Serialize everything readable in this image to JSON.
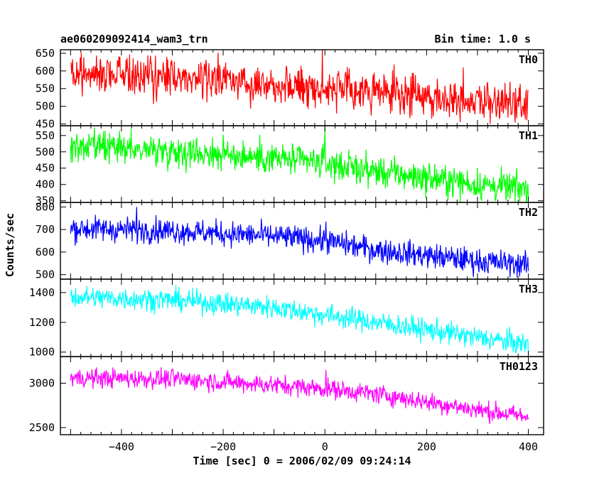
{
  "header": {
    "title": "ae060209092414_wam3_trn",
    "bin_time": "Bin time: 1.0 s"
  },
  "chart_data": {
    "type": "line",
    "title": "ae060209092414_wam3_trn",
    "subtitle": "Bin time: 1.0 s",
    "xlabel": "Time [sec] 0 = 2006/02/09 09:24:14",
    "ylabel": "Counts/sec",
    "xlim": [
      -520,
      430
    ],
    "x_ticks": [
      -400,
      -200,
      0,
      200,
      400
    ],
    "x_tick_labels": [
      "−400",
      "−200",
      "0",
      "200",
      "400"
    ],
    "x_range": [
      -500,
      400
    ],
    "grid": false,
    "panels": [
      {
        "name": "TH0",
        "color": "#ff0000",
        "ylim": [
          445,
          660
        ],
        "y_ticks": [
          450,
          500,
          550,
          600,
          650
        ],
        "trend": {
          "x": [
            -500,
            -300,
            -100,
            0,
            100,
            300,
            400
          ],
          "y": [
            595,
            585,
            565,
            550,
            540,
            515,
            500
          ]
        },
        "noise": 28,
        "spikes": [
          {
            "x": -5,
            "y": 660
          },
          {
            "x": 272,
            "y": 610
          }
        ]
      },
      {
        "name": "TH1",
        "color": "#00ff00",
        "ylim": [
          345,
          580
        ],
        "y_ticks": [
          350,
          400,
          450,
          500,
          550
        ],
        "trend": {
          "x": [
            -500,
            -300,
            -100,
            0,
            100,
            300,
            400
          ],
          "y": [
            515,
            505,
            480,
            465,
            440,
            400,
            385
          ]
        },
        "noise": 24,
        "spikes": [
          {
            "x": 0,
            "y": 578
          }
        ]
      },
      {
        "name": "TH2",
        "color": "#0000ff",
        "ylim": [
          480,
          820
        ],
        "y_ticks": [
          500,
          600,
          700,
          800
        ],
        "trend": {
          "x": [
            -500,
            -300,
            -100,
            0,
            100,
            300,
            400
          ],
          "y": [
            705,
            695,
            670,
            650,
            610,
            560,
            545
          ]
        },
        "noise": 28,
        "spikes": [
          {
            "x": -370,
            "y": 800
          },
          {
            "x": 2,
            "y": 735
          }
        ]
      },
      {
        "name": "TH3",
        "color": "#00ffff",
        "ylim": [
          970,
          1490
        ],
        "y_ticks": [
          1000,
          1200,
          1400
        ],
        "trend": {
          "x": [
            -500,
            -300,
            -100,
            0,
            100,
            300,
            400
          ],
          "y": [
            1370,
            1350,
            1300,
            1250,
            1200,
            1100,
            1050
          ]
        },
        "noise": 38,
        "spikes": []
      },
      {
        "name": "TH0123",
        "color": "#ff00ff",
        "ylim": [
          2420,
          3300
        ],
        "y_ticks": [
          2500,
          3000
        ],
        "trend": {
          "x": [
            -500,
            -300,
            -100,
            0,
            100,
            300,
            400
          ],
          "y": [
            3060,
            3050,
            2980,
            2940,
            2880,
            2700,
            2620
          ]
        },
        "noise": 55,
        "spikes": [
          {
            "x": 2,
            "y": 3150
          }
        ]
      }
    ]
  }
}
